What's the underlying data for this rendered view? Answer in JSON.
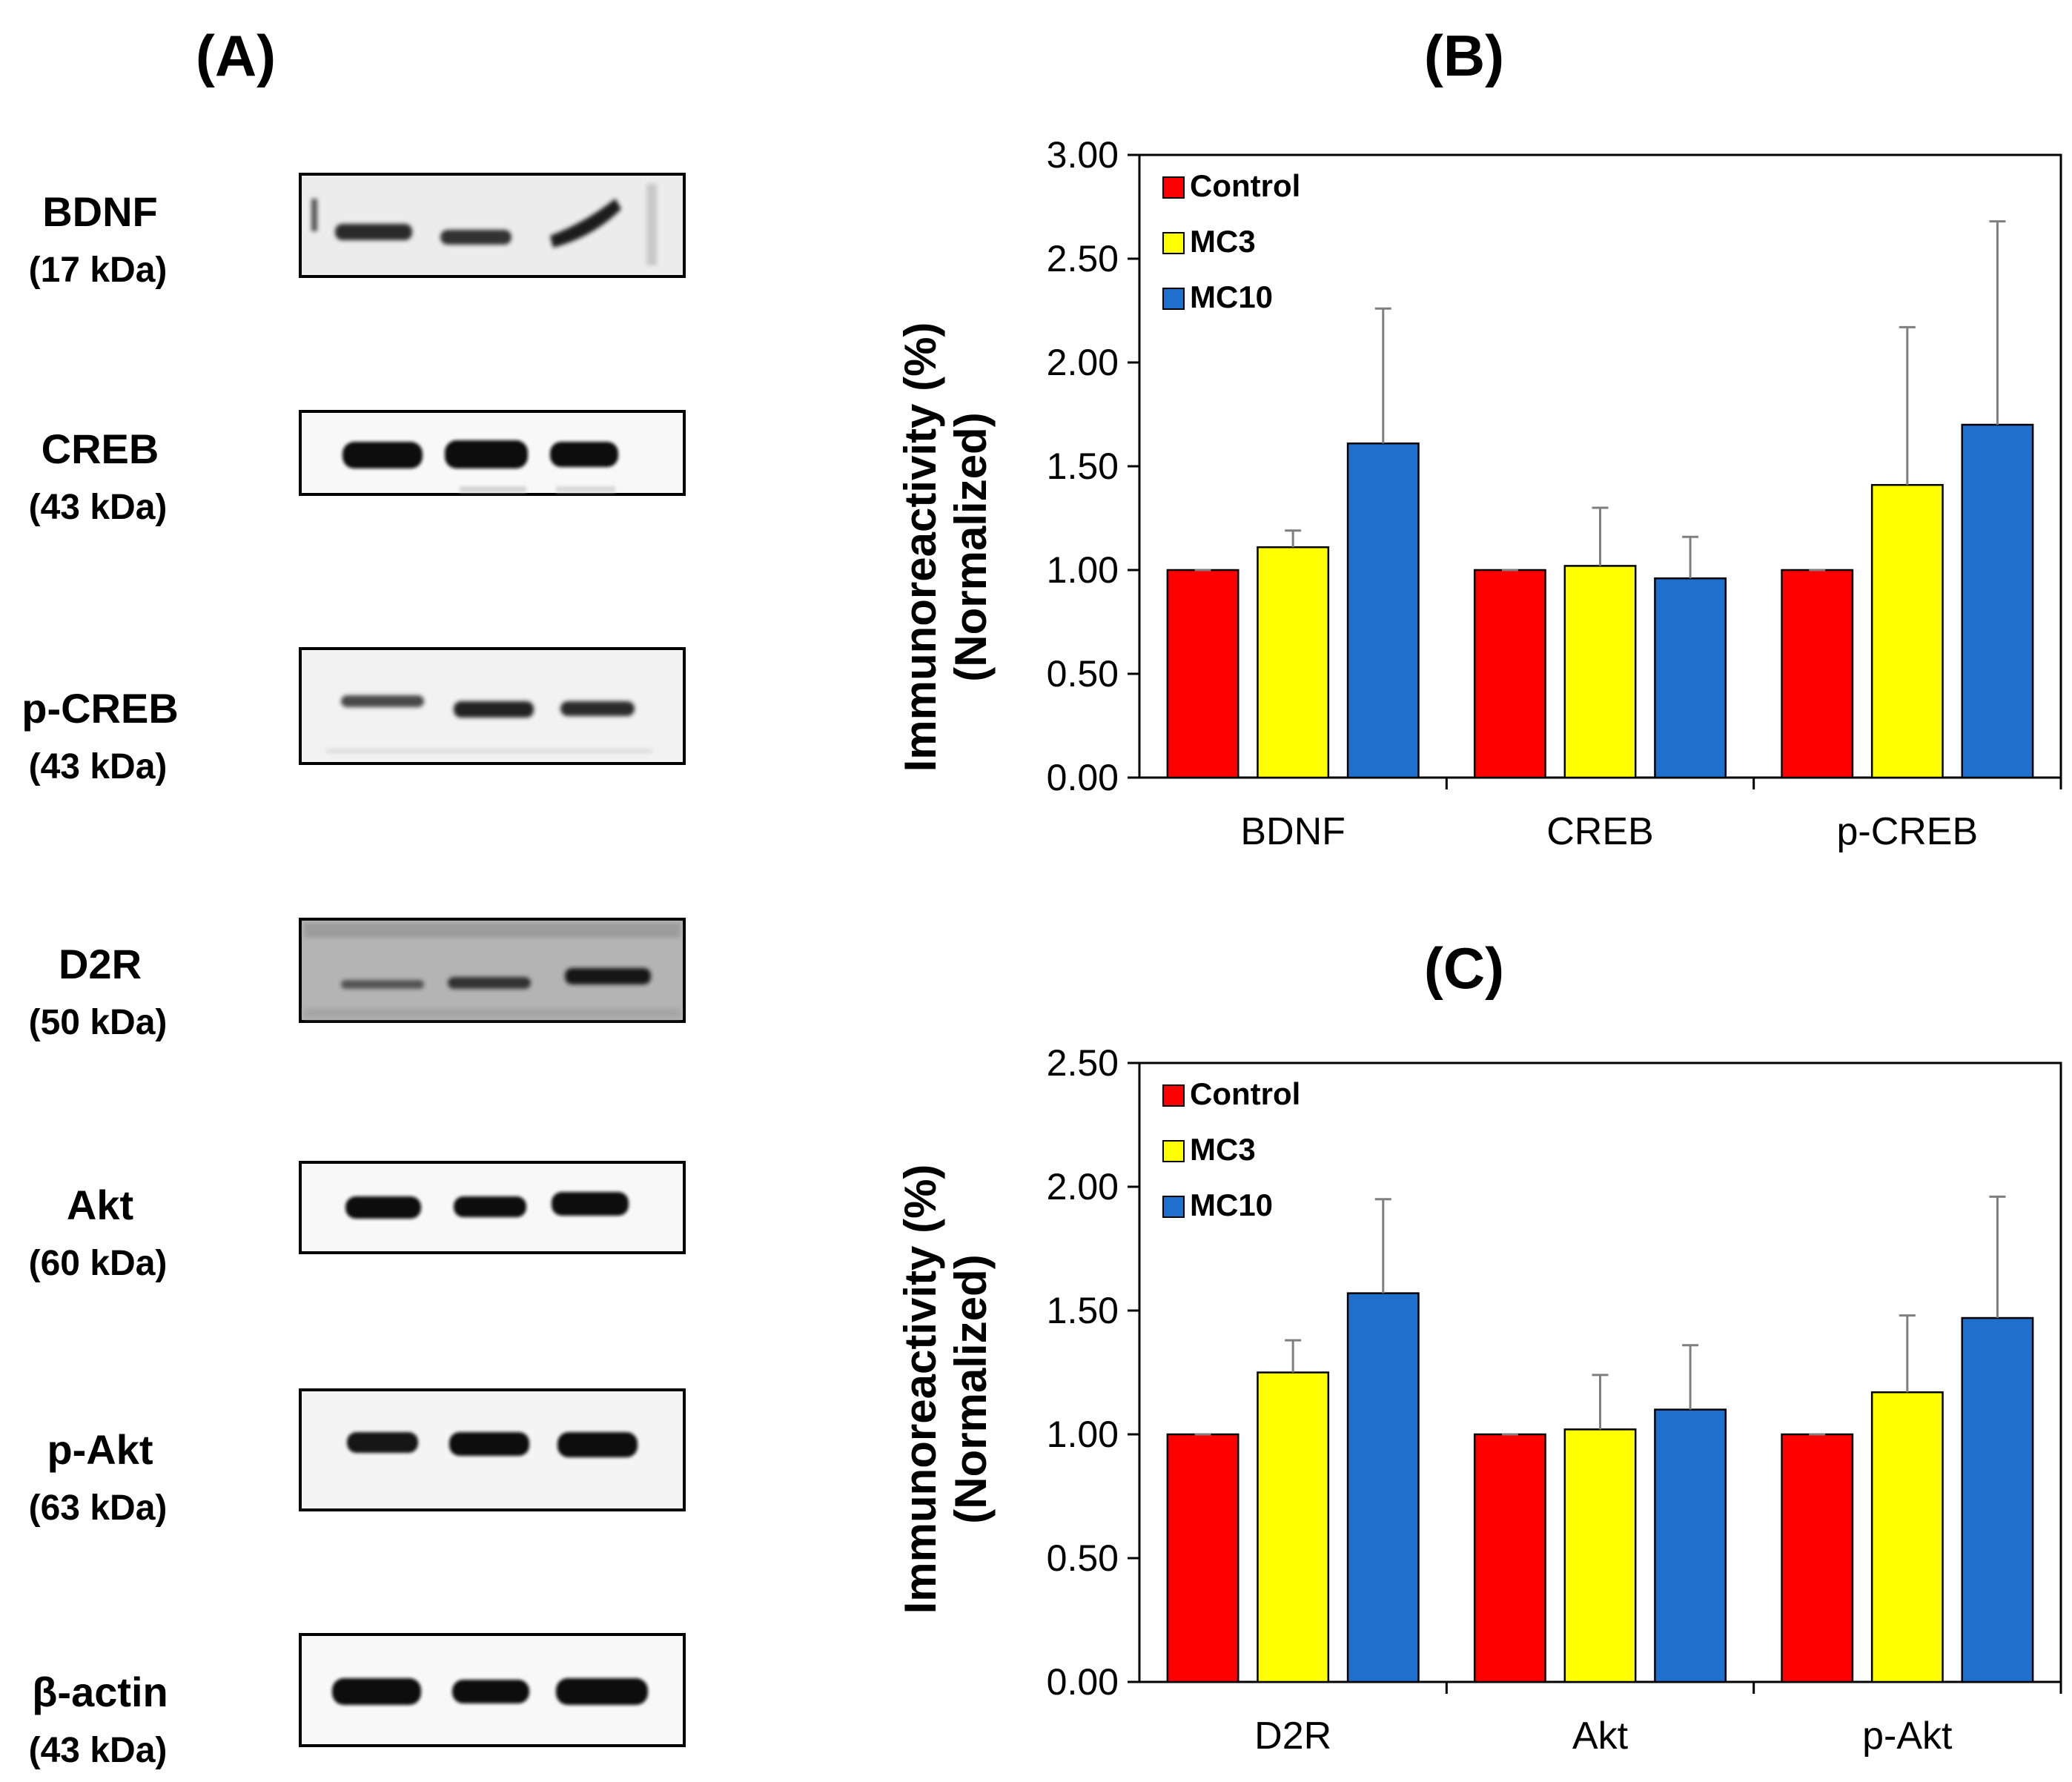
{
  "panel_a": {
    "label": "(A)",
    "blots": [
      {
        "name": "BDNF",
        "kda": "(17 kDa)"
      },
      {
        "name": "CREB",
        "kda": "(43 kDa)"
      },
      {
        "name": "p-CREB",
        "kda": "(43 kDa)"
      },
      {
        "name": "D2R",
        "kda": "(50 kDa)"
      },
      {
        "name": "Akt",
        "kda": "(60 kDa)"
      },
      {
        "name": "p-Akt",
        "kda": "(63 kDa)"
      },
      {
        "name": "β-actin",
        "kda": "(43 kDa)"
      }
    ]
  },
  "colors": {
    "Control": "#ff0000",
    "MC3": "#ffff00",
    "MC10": "#1f6fcc",
    "error": "#7f7f7f"
  },
  "chart_data": [
    {
      "panel": "(B)",
      "type": "bar",
      "ylabel_line1": "Immunoreactivity  (%)",
      "ylabel_line2": "(Normalized)",
      "categories": [
        "BDNF",
        "CREB",
        "p-CREB"
      ],
      "ylim": [
        0,
        3
      ],
      "yticks": [
        "0.00",
        "0.50",
        "1.00",
        "1.50",
        "2.00",
        "2.50",
        "3.00"
      ],
      "legend_position": "top-left",
      "series": [
        {
          "name": "Control",
          "values": [
            1.0,
            1.0,
            1.0
          ],
          "errors": [
            0,
            0,
            0
          ]
        },
        {
          "name": "MC3",
          "values": [
            1.11,
            1.02,
            1.41
          ],
          "errors": [
            0.08,
            0.28,
            0.76
          ]
        },
        {
          "name": "MC10",
          "values": [
            1.61,
            0.96,
            1.7
          ],
          "errors": [
            0.65,
            0.2,
            0.98
          ]
        }
      ]
    },
    {
      "panel": "(C)",
      "type": "bar",
      "ylabel_line1": "Immunoreactivity  (%)",
      "ylabel_line2": "(Normalized)",
      "categories": [
        "D2R",
        "Akt",
        "p-Akt"
      ],
      "ylim": [
        0,
        2.5
      ],
      "yticks": [
        "0.00",
        "0.50",
        "1.00",
        "1.50",
        "2.00",
        "2.50"
      ],
      "legend_position": "top-left",
      "series": [
        {
          "name": "Control",
          "values": [
            1.0,
            1.0,
            1.0
          ],
          "errors": [
            0,
            0,
            0
          ]
        },
        {
          "name": "MC3",
          "values": [
            1.25,
            1.02,
            1.17
          ],
          "errors": [
            0.13,
            0.22,
            0.31
          ]
        },
        {
          "name": "MC10",
          "values": [
            1.57,
            1.1,
            1.47
          ],
          "errors": [
            0.38,
            0.26,
            0.49
          ]
        }
      ]
    }
  ]
}
